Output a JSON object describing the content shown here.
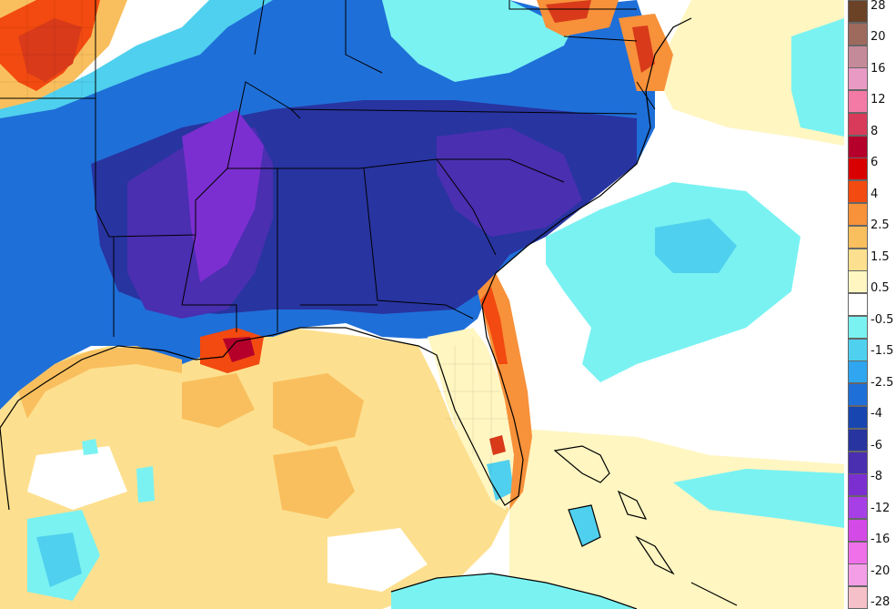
{
  "legend": {
    "labels": [
      "28",
      "20",
      "16",
      "12",
      "8",
      "6",
      "4",
      "2.5",
      "1.5",
      "0.5",
      "-0.5",
      "-1.5",
      "-2.5",
      "-4",
      "-6",
      "-8",
      "-12",
      "-16",
      "-20",
      "-28"
    ],
    "colors": [
      "#6b4226",
      "#9e6a5e",
      "#c58a9a",
      "#e89ac5",
      "#f47aa6",
      "#d83a5a",
      "#b4002a",
      "#d80000",
      "#f24a10",
      "#f7913a",
      "#f9bf5e",
      "#fde08f",
      "#fff6c2",
      "#ffffff",
      "#7af2f2",
      "#4fd0ee",
      "#2fa6ef",
      "#1f6fd8",
      "#1846b0",
      "#2834a0",
      "#4a2fb0",
      "#7c2fd0",
      "#a640e6",
      "#d44ae6",
      "#ef70e8",
      "#f49ee8",
      "#f6c0c8"
    ]
  },
  "map": {
    "description_colors": {
      "land_cold_deep": "#4a2fb0",
      "land_cold": "#2834a0",
      "land_cool": "#1f6fd8",
      "land_mild": "#4fd0ee",
      "neutral": "#ffffff",
      "ocean_warm": "#fde08f",
      "ocean_warmer": "#f9bf5e",
      "ocean_hot": "#f7913a",
      "ocean_cool": "#7af2f2",
      "coast": "#000000",
      "hot_spot": "#d83a1a"
    }
  }
}
